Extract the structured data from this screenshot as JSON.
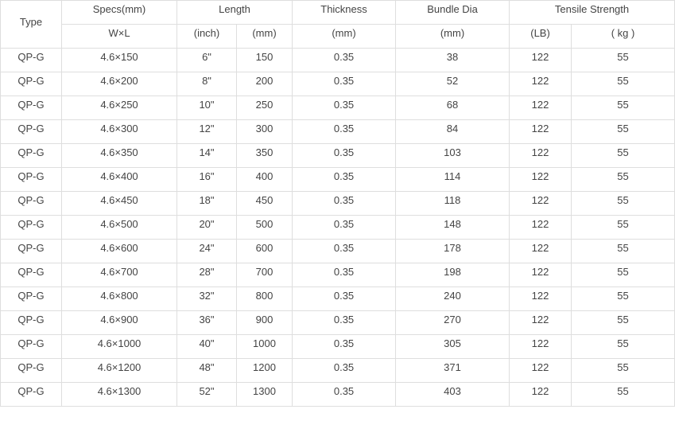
{
  "header": {
    "type": "Type",
    "specs": "Specs(mm)",
    "specs_sub": "W×L",
    "length": "Length",
    "length_inch": "(inch)",
    "length_mm": "(mm)",
    "thickness": "Thickness",
    "thickness_sub": "(mm)",
    "bundle_dia": "Bundle Dia",
    "bundle_dia_sub": "(mm)",
    "tensile": "Tensile Strength",
    "tensile_lb": "(LB)",
    "tensile_kg": "( kg )"
  },
  "rows": [
    [
      "QP-G",
      "4.6×150",
      "6\"",
      "150",
      "0.35",
      "38",
      "122",
      "55"
    ],
    [
      "QP-G",
      "4.6×200",
      "8\"",
      "200",
      "0.35",
      "52",
      "122",
      "55"
    ],
    [
      "QP-G",
      "4.6×250",
      "10\"",
      "250",
      "0.35",
      "68",
      "122",
      "55"
    ],
    [
      "QP-G",
      "4.6×300",
      "12\"",
      "300",
      "0.35",
      "84",
      "122",
      "55"
    ],
    [
      "QP-G",
      "4.6×350",
      "14\"",
      "350",
      "0.35",
      "103",
      "122",
      "55"
    ],
    [
      "QP-G",
      "4.6×400",
      "16\"",
      "400",
      "0.35",
      "114",
      "122",
      "55"
    ],
    [
      "QP-G",
      "4.6×450",
      "18\"",
      "450",
      "0.35",
      "118",
      "122",
      "55"
    ],
    [
      "QP-G",
      "4.6×500",
      "20\"",
      "500",
      "0.35",
      "148",
      "122",
      "55"
    ],
    [
      "QP-G",
      "4.6×600",
      "24\"",
      "600",
      "0.35",
      "178",
      "122",
      "55"
    ],
    [
      "QP-G",
      "4.6×700",
      "28\"",
      "700",
      "0.35",
      "198",
      "122",
      "55"
    ],
    [
      "QP-G",
      "4.6×800",
      "32\"",
      "800",
      "0.35",
      "240",
      "122",
      "55"
    ],
    [
      "QP-G",
      "4.6×900",
      "36\"",
      "900",
      "0.35",
      "270",
      "122",
      "55"
    ],
    [
      "QP-G",
      "4.6×1000",
      "40\"",
      "1000",
      "0.35",
      "305",
      "122",
      "55"
    ],
    [
      "QP-G",
      "4.6×1200",
      "48\"",
      "1200",
      "0.35",
      "371",
      "122",
      "55"
    ],
    [
      "QP-G",
      "4.6×1300",
      "52\"",
      "1300",
      "0.35",
      "403",
      "122",
      "55"
    ]
  ]
}
